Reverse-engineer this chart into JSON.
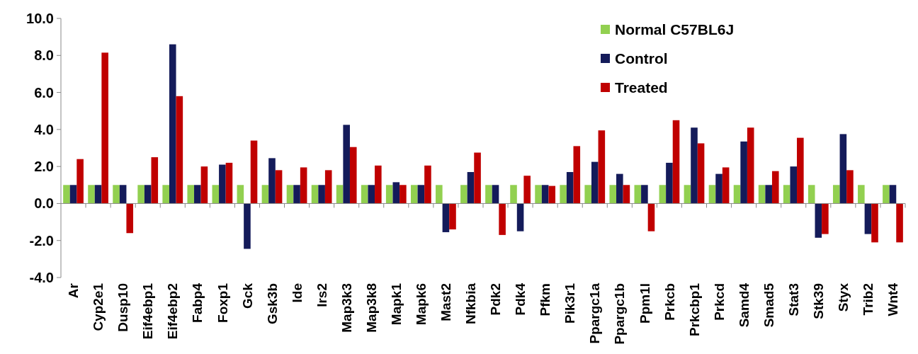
{
  "chart_data": {
    "type": "bar",
    "categories": [
      "Ar",
      "Cyp2e1",
      "Dusp10",
      "Eif4ebp1",
      "Eif4ebp2",
      "Fabp4",
      "Foxp1",
      "Gck",
      "Gsk3b",
      "Ide",
      "Irs2",
      "Map3k3",
      "Map3k8",
      "Mapk1",
      "Mapk6",
      "Mast2",
      "Nfkbia",
      "Pdk2",
      "Pdk4",
      "Pfkm",
      "Pik3r1",
      "Ppargc1a",
      "Ppargc1b",
      "Ppm1l",
      "Prkcb",
      "Prkcbp1",
      "Prkcd",
      "Samd4",
      "Smad5",
      "Stat3",
      "Stk39",
      "Styx",
      "Trib2",
      "Wnt4"
    ],
    "series": [
      {
        "name": "Normal C57BL6J",
        "color": "#92d050",
        "values": [
          1,
          1,
          1,
          1,
          1,
          1,
          1,
          1,
          1,
          1,
          1,
          1,
          1,
          1,
          1,
          1,
          1,
          1,
          1,
          1,
          1,
          1,
          1,
          1,
          1,
          1,
          1,
          1,
          1,
          1,
          1,
          1,
          1,
          1
        ]
      },
      {
        "name": "Control",
        "color": "#141b5a",
        "values": [
          1,
          1,
          1,
          1,
          8.6,
          1,
          2.1,
          -2.45,
          2.45,
          1,
          1,
          4.25,
          1,
          1.15,
          1,
          -1.55,
          1.7,
          1,
          -1.5,
          1,
          1.7,
          2.25,
          1.6,
          1,
          2.2,
          4.1,
          1.6,
          3.35,
          1,
          2.0,
          -1.85,
          3.75,
          -1.65,
          1
        ]
      },
      {
        "name": "Treated",
        "color": "#c00000",
        "values": [
          2.4,
          8.15,
          -1.6,
          2.5,
          5.8,
          2.0,
          2.2,
          3.4,
          1.8,
          1.95,
          1.8,
          3.05,
          2.05,
          1.0,
          2.05,
          -1.4,
          2.75,
          -1.7,
          1.5,
          0.95,
          3.1,
          3.95,
          1.0,
          -1.5,
          4.5,
          3.25,
          1.95,
          4.1,
          1.75,
          3.55,
          -1.65,
          1.8,
          -2.1,
          -2.1
        ]
      }
    ],
    "ylim": [
      -4,
      10
    ],
    "yticks": [
      {
        "value": -4,
        "label": "-4.0"
      },
      {
        "value": -2,
        "label": "-2.0"
      },
      {
        "value": 0,
        "label": "0.0"
      },
      {
        "value": 2,
        "label": "2.0"
      },
      {
        "value": 4,
        "label": "4.0"
      },
      {
        "value": 6,
        "label": "6.0"
      },
      {
        "value": 8,
        "label": "8.0"
      },
      {
        "value": 10,
        "label": "10.0"
      }
    ],
    "legend": "top right"
  }
}
